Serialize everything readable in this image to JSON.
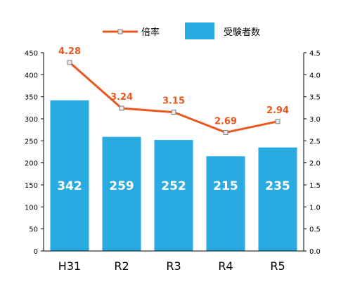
{
  "legend": {
    "line_label": "倍率",
    "bar_label": "受験者数"
  },
  "colors": {
    "bar": "#29abe2",
    "line": "#e8571e",
    "bar_label": "#ffffff",
    "line_label": "#e8571e",
    "axis": "#000000",
    "marker_fill": "#e8e8e8",
    "marker_stroke": "#7f7f7f"
  },
  "chart_data": {
    "type": "bar",
    "categories": [
      "H31",
      "R2",
      "R3",
      "R4",
      "R5"
    ],
    "series": [
      {
        "name": "受験者数",
        "type": "bar",
        "axis": "left",
        "values": [
          342,
          259,
          252,
          215,
          235
        ]
      },
      {
        "name": "倍率",
        "type": "line",
        "axis": "right",
        "values": [
          4.28,
          3.24,
          3.15,
          2.69,
          2.94
        ]
      }
    ],
    "left_axis": {
      "range": [
        0,
        450
      ],
      "ticks": [
        0,
        50,
        100,
        150,
        200,
        250,
        300,
        350,
        400,
        450
      ],
      "tick_labels": [
        "0",
        "50",
        "100",
        "150",
        "200",
        "250",
        "300",
        "350",
        "400",
        "450"
      ]
    },
    "right_axis": {
      "range": [
        0,
        4.5
      ],
      "ticks": [
        0,
        0.5,
        1,
        1.5,
        2,
        2.5,
        3,
        3.5,
        4,
        4.5
      ],
      "tick_labels": [
        "0.0",
        "0.5",
        "1.0",
        "1.5",
        "2.0",
        "2.5",
        "3.0",
        "3.5",
        "4.0",
        "4.5"
      ]
    },
    "bar_data_labels": [
      "342",
      "259",
      "252",
      "215",
      "235"
    ],
    "line_data_labels": [
      "4.28",
      "3.24",
      "3.15",
      "2.69",
      "2.94"
    ],
    "grid": false,
    "legend_position": "top-center"
  }
}
